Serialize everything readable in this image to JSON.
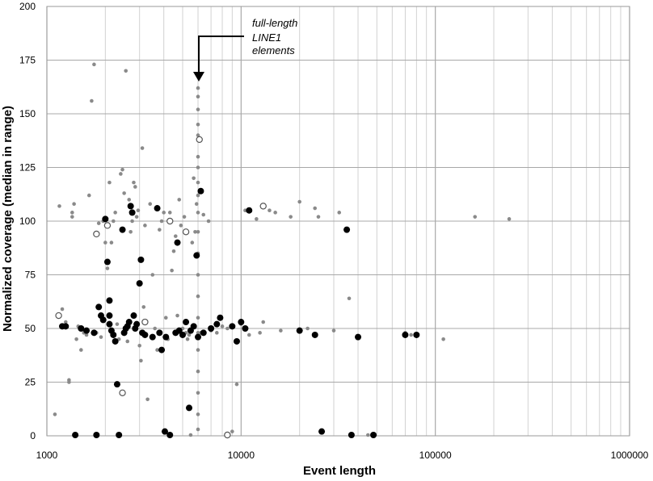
{
  "chart_data": {
    "type": "scatter",
    "xlabel": "Event length",
    "ylabel": "Normalized coverage (median in range)",
    "xscale": "log",
    "xlim": [
      1000,
      1000000
    ],
    "ylim": [
      0,
      200
    ],
    "x_ticks": [
      "1000",
      "10000",
      "100000",
      "1000000"
    ],
    "y_ticks": [
      "0",
      "25",
      "50",
      "75",
      "100",
      "125",
      "150",
      "175",
      "200"
    ],
    "grid": true,
    "annotation": {
      "lines": [
        "full-length",
        "LINE1",
        "elements"
      ],
      "points_to": {
        "x": 6000,
        "y": 162
      }
    },
    "colors": {
      "gray": "#8a8a8a",
      "black": "#000000",
      "open_stroke": "#555555"
    },
    "series": [
      {
        "marker": "small-gray",
        "points": [
          [
            1100,
            10
          ],
          [
            1160,
            107
          ],
          [
            1200,
            59
          ],
          [
            1250,
            53
          ],
          [
            1300,
            26
          ],
          [
            1300,
            25
          ],
          [
            1350,
            102
          ],
          [
            1350,
            104
          ],
          [
            1380,
            108
          ],
          [
            1420,
            45
          ],
          [
            1450,
            51
          ],
          [
            1500,
            50
          ],
          [
            1500,
            40
          ],
          [
            1550,
            48
          ],
          [
            1600,
            47
          ],
          [
            1650,
            112
          ],
          [
            1700,
            156
          ],
          [
            1750,
            173
          ],
          [
            1800,
            48
          ],
          [
            1850,
            99
          ],
          [
            1900,
            46
          ],
          [
            1950,
            100
          ],
          [
            2000,
            90
          ],
          [
            2050,
            78
          ],
          [
            2100,
            118
          ],
          [
            2150,
            90
          ],
          [
            2200,
            100
          ],
          [
            2250,
            104
          ],
          [
            2300,
            52
          ],
          [
            2350,
            45
          ],
          [
            2400,
            122
          ],
          [
            2450,
            124
          ],
          [
            2500,
            113
          ],
          [
            2550,
            170
          ],
          [
            2600,
            44
          ],
          [
            2650,
            110
          ],
          [
            2700,
            95
          ],
          [
            2750,
            100
          ],
          [
            2800,
            118
          ],
          [
            2850,
            116
          ],
          [
            2900,
            102
          ],
          [
            2950,
            105
          ],
          [
            3000,
            42
          ],
          [
            3050,
            35
          ],
          [
            3100,
            134
          ],
          [
            3150,
            60
          ],
          [
            3200,
            98
          ],
          [
            3300,
            17
          ],
          [
            3400,
            108
          ],
          [
            3500,
            75
          ],
          [
            3600,
            50
          ],
          [
            3700,
            40
          ],
          [
            3800,
            96
          ],
          [
            3900,
            100
          ],
          [
            4000,
            104
          ],
          [
            4100,
            55
          ],
          [
            4200,
            45
          ],
          [
            4300,
            104
          ],
          [
            4400,
            77
          ],
          [
            4500,
            86
          ],
          [
            4600,
            93
          ],
          [
            4700,
            56
          ],
          [
            4800,
            110
          ],
          [
            4900,
            98
          ],
          [
            5000,
            50
          ],
          [
            5100,
            102
          ],
          [
            5200,
            48
          ],
          [
            5300,
            45
          ],
          [
            5400,
            47
          ],
          [
            5500,
            0
          ],
          [
            5600,
            90
          ],
          [
            5700,
            120
          ],
          [
            5800,
            95
          ],
          [
            5900,
            108
          ],
          [
            6000,
            162
          ],
          [
            6000,
            158
          ],
          [
            6000,
            152
          ],
          [
            6000,
            145
          ],
          [
            6000,
            140
          ],
          [
            6000,
            130
          ],
          [
            6000,
            125
          ],
          [
            6000,
            118
          ],
          [
            6000,
            112
          ],
          [
            6000,
            104
          ],
          [
            6000,
            95
          ],
          [
            6000,
            85
          ],
          [
            6000,
            75
          ],
          [
            6000,
            65
          ],
          [
            6000,
            55
          ],
          [
            6000,
            48
          ],
          [
            6000,
            40
          ],
          [
            6000,
            30
          ],
          [
            6000,
            20
          ],
          [
            6000,
            10
          ],
          [
            6000,
            3
          ],
          [
            6200,
            48
          ],
          [
            6400,
            103
          ],
          [
            6800,
            100
          ],
          [
            7000,
            49
          ],
          [
            7500,
            48
          ],
          [
            8000,
            51
          ],
          [
            8500,
            50
          ],
          [
            9000,
            2
          ],
          [
            9500,
            24
          ],
          [
            10000,
            52
          ],
          [
            10500,
            105
          ],
          [
            11000,
            47
          ],
          [
            12000,
            101
          ],
          [
            12500,
            48
          ],
          [
            13000,
            53
          ],
          [
            14000,
            105
          ],
          [
            15000,
            104
          ],
          [
            16000,
            49
          ],
          [
            18000,
            102
          ],
          [
            20000,
            109
          ],
          [
            22000,
            50
          ],
          [
            24000,
            106
          ],
          [
            25000,
            102
          ],
          [
            30000,
            49
          ],
          [
            32000,
            104
          ],
          [
            36000,
            64
          ],
          [
            40000,
            46
          ],
          [
            45000,
            0
          ],
          [
            70000,
            48
          ],
          [
            75000,
            47
          ],
          [
            110000,
            45
          ],
          [
            160000,
            102
          ],
          [
            240000,
            101
          ]
        ]
      },
      {
        "marker": "filled-black",
        "points": [
          [
            1200,
            51
          ],
          [
            1250,
            51
          ],
          [
            1400,
            0
          ],
          [
            1500,
            50
          ],
          [
            1600,
            49
          ],
          [
            1750,
            48
          ],
          [
            1800,
            0
          ],
          [
            1850,
            60
          ],
          [
            1900,
            56
          ],
          [
            1950,
            54
          ],
          [
            2000,
            101
          ],
          [
            2050,
            81
          ],
          [
            2100,
            63
          ],
          [
            2100,
            56
          ],
          [
            2100,
            52
          ],
          [
            2150,
            49
          ],
          [
            2200,
            47
          ],
          [
            2250,
            44
          ],
          [
            2300,
            24
          ],
          [
            2350,
            0
          ],
          [
            2450,
            96
          ],
          [
            2500,
            48
          ],
          [
            2550,
            50
          ],
          [
            2600,
            51
          ],
          [
            2650,
            53
          ],
          [
            2700,
            107
          ],
          [
            2750,
            104
          ],
          [
            2800,
            56
          ],
          [
            2850,
            50
          ],
          [
            2900,
            52
          ],
          [
            3000,
            71
          ],
          [
            3050,
            82
          ],
          [
            3100,
            48
          ],
          [
            3200,
            47
          ],
          [
            3500,
            46
          ],
          [
            3700,
            106
          ],
          [
            3800,
            48
          ],
          [
            3900,
            40
          ],
          [
            4050,
            2
          ],
          [
            4100,
            46
          ],
          [
            4300,
            0
          ],
          [
            4600,
            48
          ],
          [
            4700,
            90
          ],
          [
            4800,
            49
          ],
          [
            5000,
            47
          ],
          [
            5200,
            53
          ],
          [
            5400,
            13
          ],
          [
            5500,
            49
          ],
          [
            5700,
            51
          ],
          [
            5900,
            84
          ],
          [
            6000,
            46
          ],
          [
            6200,
            114
          ],
          [
            6400,
            48
          ],
          [
            7000,
            50
          ],
          [
            7500,
            52
          ],
          [
            7800,
            55
          ],
          [
            9000,
            51
          ],
          [
            9500,
            44
          ],
          [
            10000,
            53
          ],
          [
            10500,
            50
          ],
          [
            11000,
            105
          ],
          [
            20000,
            49
          ],
          [
            24000,
            47
          ],
          [
            26000,
            2
          ],
          [
            35000,
            96
          ],
          [
            37000,
            0
          ],
          [
            40000,
            46
          ],
          [
            48000,
            0
          ],
          [
            70000,
            47
          ],
          [
            80000,
            47
          ]
        ]
      },
      {
        "marker": "open-circle",
        "points": [
          [
            1150,
            56
          ],
          [
            1800,
            94
          ],
          [
            2050,
            98
          ],
          [
            2450,
            20
          ],
          [
            3200,
            53
          ],
          [
            4300,
            100
          ],
          [
            5200,
            95
          ],
          [
            6100,
            138
          ],
          [
            8500,
            0
          ],
          [
            13000,
            107
          ]
        ]
      }
    ]
  }
}
